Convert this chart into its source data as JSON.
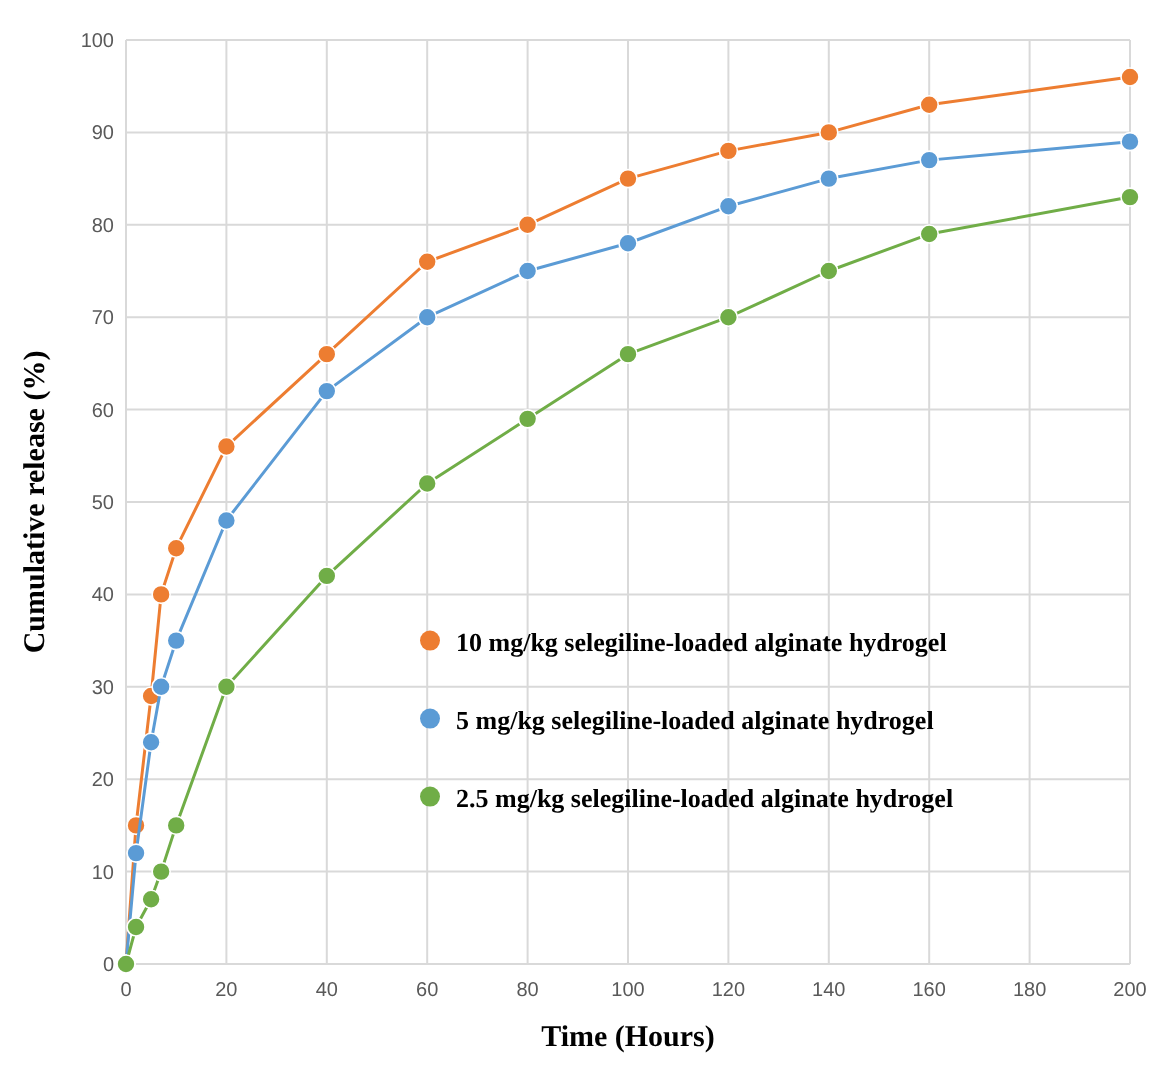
{
  "chart_data": {
    "type": "line",
    "xlabel": "Time (Hours)",
    "ylabel": "Cumulative release (%)",
    "x": [
      0,
      2,
      5,
      7,
      10,
      20,
      40,
      60,
      80,
      100,
      120,
      140,
      160,
      200
    ],
    "series": [
      {
        "name": "10 mg/kg selegiline-loaded alginate hydrogel",
        "color": "#ed7d31",
        "values": [
          0,
          15,
          29,
          40,
          45,
          56,
          66,
          76,
          80,
          85,
          88,
          90,
          93,
          96
        ]
      },
      {
        "name": "5 mg/kg selegiline-loaded alginate hydrogel",
        "color": "#5b9bd5",
        "values": [
          0,
          12,
          24,
          30,
          35,
          48,
          62,
          70,
          75,
          78,
          82,
          85,
          87,
          89
        ]
      },
      {
        "name": "2.5 mg/kg selegiline-loaded alginate hydrogel",
        "color": "#70ad47",
        "values": [
          0,
          4,
          7,
          10,
          15,
          30,
          42,
          52,
          59,
          66,
          70,
          75,
          79,
          83
        ]
      }
    ],
    "xlim": [
      0,
      200
    ],
    "xticks": [
      0,
      20,
      40,
      60,
      80,
      100,
      120,
      140,
      160,
      180,
      200
    ],
    "ylim": [
      0,
      100
    ],
    "yticks": [
      0,
      10,
      20,
      30,
      40,
      50,
      60,
      70,
      80,
      90,
      100
    ],
    "grid": true,
    "legend": "right",
    "marker": "circle",
    "line_style": "solid"
  }
}
